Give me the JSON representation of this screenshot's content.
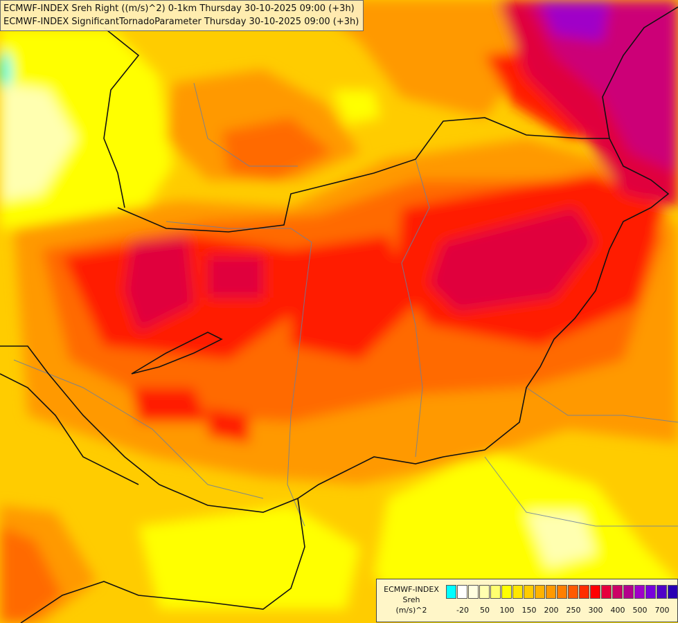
{
  "header": {
    "line1": "ECMWF-INDEX Sreh Right ((m/s)^2) 0-1km Thursday 30-10-2025 09:00 (+3h)",
    "line2": "ECMWF-INDEX SignificantTornadoParameter Thursday 30-10-2025 09:00 (+3h)"
  },
  "legend": {
    "line1": "ECMWF-INDEX",
    "line2": "Sreh",
    "line3": "(m/s)^2",
    "colors": [
      "#00ffff",
      "#ffffff",
      "#ffffe0",
      "#ffffb0",
      "#ffff70",
      "#ffff00",
      "#ffe600",
      "#ffcc00",
      "#ffb300",
      "#ff9900",
      "#ff7f00",
      "#ff5a00",
      "#ff2d00",
      "#ff0000",
      "#e6003c",
      "#cc0066",
      "#b4008c",
      "#a000c8",
      "#7800dc",
      "#5000c8",
      "#2800b4",
      "#000080"
    ],
    "ticks": [
      "-20",
      "50",
      "100",
      "150",
      "200",
      "250",
      "300",
      "400",
      "500",
      "700"
    ]
  },
  "map": {
    "palette": {
      "yellow_light": "#ffffb0",
      "yellow": "#ffff00",
      "gold": "#ffcc00",
      "orange": "#ff9900",
      "dark_orange": "#ff6a00",
      "red": "#ff1a00",
      "crimson": "#e0003c",
      "magenta": "#cc0077",
      "purple": "#a000c8",
      "cyan": "#00ffff",
      "border": "#111111",
      "river": "#6a7f9f"
    }
  }
}
